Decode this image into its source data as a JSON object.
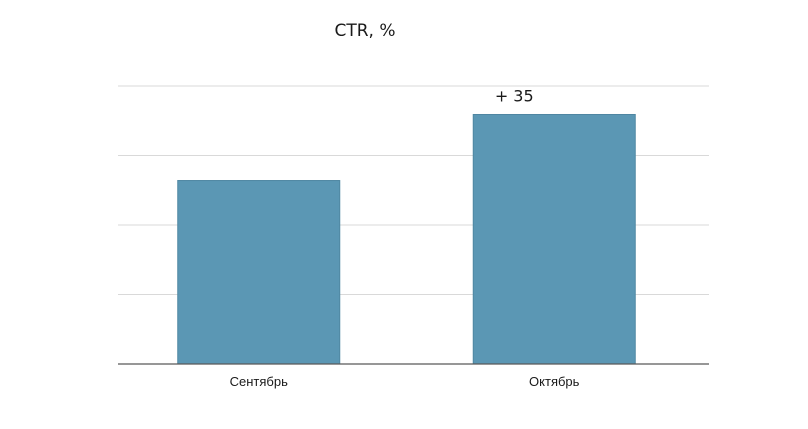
{
  "chart_data": {
    "type": "bar",
    "title": "CTR, %",
    "xlabel": "",
    "ylabel": "",
    "categories": [
      "Сентябрь",
      "Октябрь"
    ],
    "values": [
      2.64,
      3.59
    ],
    "data_labels": [
      "",
      "+ 35"
    ],
    "ylim": [
      0,
      4
    ],
    "y_ticks_shown": false,
    "grid": true,
    "legend": "none",
    "bar_color": "#5b97b4",
    "bar_edge_color": "#4f87a2",
    "grid_color": "#d9d9d9",
    "axis_color": "#595959"
  }
}
